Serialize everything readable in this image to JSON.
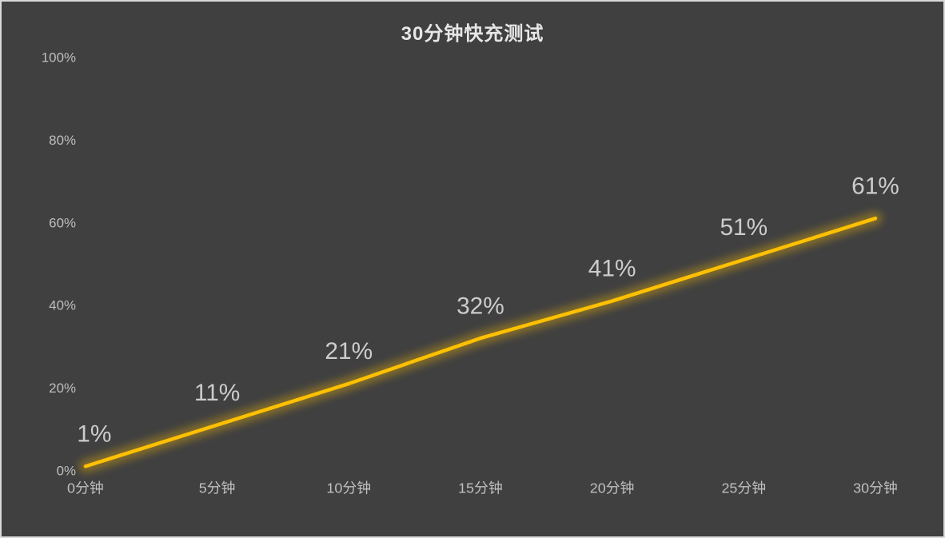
{
  "page": {
    "background_color": "#404040",
    "border_color": "#d9d9d9"
  },
  "chart_data": {
    "type": "line",
    "title": "30分钟快充测试",
    "categories": [
      "0分钟",
      "5分钟",
      "10分钟",
      "15分钟",
      "20分钟",
      "25分钟",
      "30分钟"
    ],
    "values": [
      1,
      11,
      21,
      32,
      41,
      51,
      61
    ],
    "data_labels": [
      "1%",
      "11%",
      "21%",
      "32%",
      "41%",
      "51%",
      "61%"
    ],
    "y_ticks": [
      "0%",
      "20%",
      "40%",
      "60%",
      "80%",
      "100%"
    ],
    "y_tick_values": [
      0,
      20,
      40,
      60,
      80,
      100
    ],
    "ylim": [
      0,
      100
    ],
    "xlabel": "",
    "ylabel": "",
    "grid": false,
    "legend": "none",
    "line_color": "#FFC000",
    "glow_opacity": 0.35,
    "axis_text_color": "#bfbfbf",
    "data_label_color": "#cccccc",
    "title_color": "#e6e6e6"
  }
}
